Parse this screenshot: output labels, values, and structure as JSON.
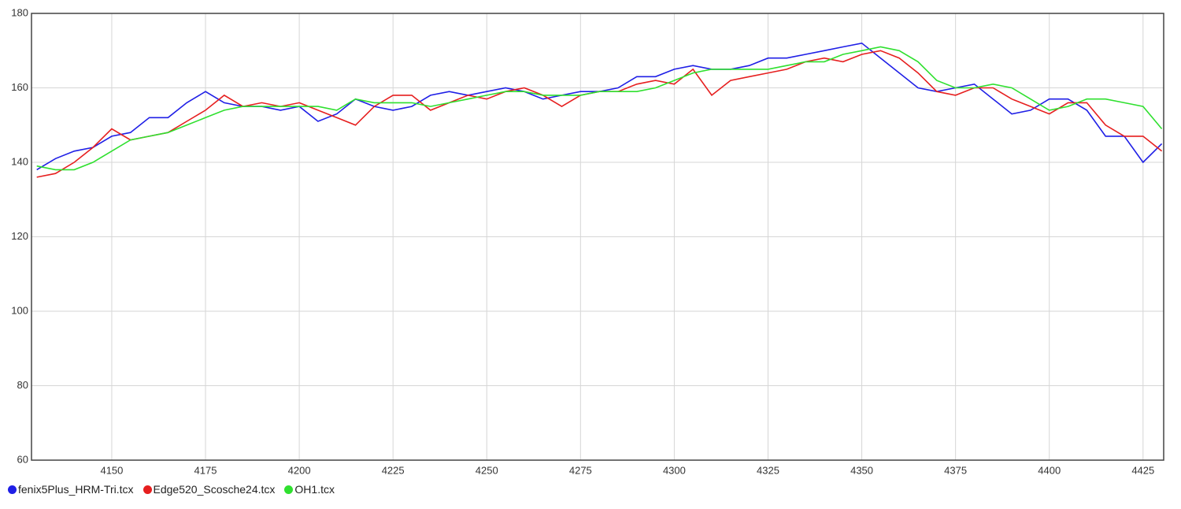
{
  "chart_data": {
    "type": "line",
    "x": [
      4130,
      4135,
      4140,
      4145,
      4150,
      4155,
      4160,
      4165,
      4170,
      4175,
      4180,
      4185,
      4190,
      4195,
      4200,
      4205,
      4210,
      4215,
      4220,
      4225,
      4230,
      4235,
      4240,
      4245,
      4250,
      4255,
      4260,
      4265,
      4270,
      4275,
      4280,
      4285,
      4290,
      4295,
      4300,
      4305,
      4310,
      4315,
      4320,
      4325,
      4330,
      4335,
      4340,
      4345,
      4350,
      4355,
      4360,
      4365,
      4370,
      4375,
      4380,
      4385,
      4390,
      4395,
      4400,
      4405,
      4410,
      4415,
      4420,
      4425,
      4430
    ],
    "series": [
      {
        "name": "fenix5Plus_HRM-Tri.tcx",
        "color": "#1f1fe6",
        "values": [
          138,
          141,
          143,
          144,
          147,
          148,
          152,
          152,
          156,
          159,
          156,
          155,
          155,
          154,
          155,
          151,
          153,
          157,
          155,
          154,
          155,
          158,
          159,
          158,
          159,
          160,
          159,
          157,
          158,
          159,
          159,
          160,
          163,
          163,
          165,
          166,
          165,
          165,
          166,
          168,
          168,
          169,
          170,
          171,
          172,
          168,
          164,
          160,
          159,
          160,
          161,
          157,
          153,
          154,
          157,
          157,
          154,
          147,
          147,
          140,
          145
        ]
      },
      {
        "name": "Edge520_Scosche24.tcx",
        "color": "#e61f1f",
        "values": [
          136,
          137,
          140,
          144,
          149,
          146,
          147,
          148,
          151,
          154,
          158,
          155,
          156,
          155,
          156,
          154,
          152,
          150,
          155,
          158,
          158,
          154,
          156,
          158,
          157,
          159,
          160,
          158,
          155,
          158,
          159,
          159,
          161,
          162,
          161,
          165,
          158,
          162,
          163,
          164,
          165,
          167,
          168,
          167,
          169,
          170,
          168,
          164,
          159,
          158,
          160,
          160,
          157,
          155,
          153,
          156,
          156,
          150,
          147,
          147,
          143
        ]
      },
      {
        "name": "OH1.tcx",
        "color": "#2fe02f",
        "values": [
          139,
          138,
          138,
          140,
          143,
          146,
          147,
          148,
          150,
          152,
          154,
          155,
          155,
          155,
          155,
          155,
          154,
          157,
          156,
          156,
          156,
          155,
          156,
          157,
          158,
          159,
          159,
          158,
          158,
          158,
          159,
          159,
          159,
          160,
          162,
          164,
          165,
          165,
          165,
          165,
          166,
          167,
          167,
          169,
          170,
          171,
          170,
          167,
          162,
          160,
          160,
          161,
          160,
          157,
          154,
          155,
          157,
          157,
          156,
          155,
          149
        ]
      }
    ],
    "xlim": [
      4128.6,
      4430.5
    ],
    "ylim": [
      60,
      180
    ],
    "xticks": [
      4150,
      4175,
      4200,
      4225,
      4250,
      4275,
      4300,
      4325,
      4350,
      4375,
      4400,
      4425
    ],
    "yticks": [
      60,
      80,
      100,
      120,
      140,
      160,
      180
    ],
    "grid": true
  }
}
